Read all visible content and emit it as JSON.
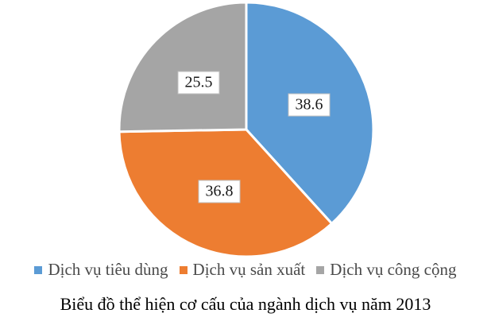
{
  "chart_data": {
    "type": "pie",
    "title": "Biểu đồ thể hiện cơ cấu của ngành dịch vụ năm 2013",
    "categories": [
      "Dịch vụ tiêu dùng",
      "Dịch vụ sản xuất",
      "Dịch vụ công cộng"
    ],
    "values": [
      38.6,
      36.8,
      25.5
    ],
    "data_labels": [
      "38.6",
      "36.8",
      "25.5"
    ],
    "colors": [
      "#5B9BD5",
      "#ED7D31",
      "#A5A5A5"
    ],
    "start_angle_deg": 0,
    "direction": "clockwise",
    "slice_border_color": "#ffffff",
    "legend_position": "bottom",
    "data_label_style": "white box with gray border, black serif text"
  },
  "legend": {
    "items": [
      {
        "label": "Dịch vụ tiêu dùng",
        "color": "#5B9BD5"
      },
      {
        "label": "Dịch vụ sản xuất",
        "color": "#ED7D31"
      },
      {
        "label": "Dịch vụ công cộng",
        "color": "#A5A5A5"
      }
    ]
  },
  "caption": "Biểu đồ thể hiện cơ cấu của ngành dịch vụ năm 2013"
}
